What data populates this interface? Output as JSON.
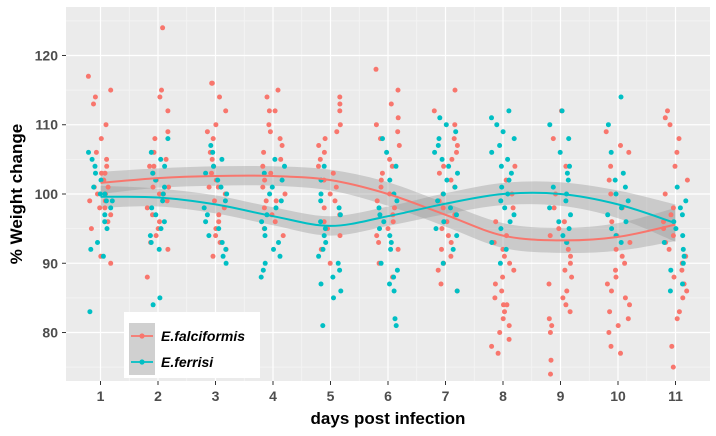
{
  "chart_data": {
    "type": "scatter",
    "title": "",
    "xlabel": "days post infection",
    "ylabel": "% Weight change",
    "xlim": [
      0.4,
      11.6
    ],
    "ylim": [
      73,
      127
    ],
    "x_ticks": [
      1,
      2,
      3,
      4,
      5,
      6,
      7,
      8,
      9,
      10,
      11
    ],
    "y_ticks": [
      80,
      90,
      100,
      110,
      120
    ],
    "grid": true,
    "legend_position": "bottom-left",
    "series": [
      {
        "name": "E.falciformis",
        "color": "#f8766d",
        "trend": [
          {
            "x": 1,
            "y": 101.6
          },
          {
            "x": 2,
            "y": 102.3
          },
          {
            "x": 3,
            "y": 102.6
          },
          {
            "x": 4,
            "y": 102.6
          },
          {
            "x": 5,
            "y": 102.0
          },
          {
            "x": 6,
            "y": 100.0
          },
          {
            "x": 7,
            "y": 97.0
          },
          {
            "x": 8,
            "y": 94.0
          },
          {
            "x": 9,
            "y": 93.3
          },
          {
            "x": 10,
            "y": 93.8
          },
          {
            "x": 11,
            "y": 95.6
          }
        ],
        "band": [
          1.6,
          1.4,
          1.4,
          1.4,
          1.5,
          1.7,
          1.7,
          1.8,
          1.8,
          2.0,
          2.4
        ],
        "points": [
          {
            "x": 1,
            "values": [
              117,
              115,
              114,
              113,
              110,
              108,
              106,
              105,
              104,
              103,
              103,
              102,
              101,
              101,
              100,
              100,
              99,
              99,
              98,
              98,
              97,
              96,
              95,
              91,
              90
            ]
          },
          {
            "x": 2,
            "values": [
              124,
              115,
              114,
              112,
              109,
              108,
              106,
              105,
              104,
              104,
              103,
              102,
              101,
              101,
              100,
              100,
              99,
              98,
              97,
              96,
              95,
              94,
              93,
              92,
              88
            ]
          },
          {
            "x": 3,
            "values": [
              116,
              116,
              114,
              112,
              110,
              109,
              108,
              106,
              105,
              104,
              103,
              102,
              101,
              101,
              100,
              99,
              98,
              97,
              96,
              95,
              94,
              93,
              92,
              91
            ]
          },
          {
            "x": 4,
            "values": [
              115,
              114,
              112,
              112,
              110,
              109,
              108,
              107,
              106,
              105,
              104,
              103,
              102,
              101,
              100,
              99,
              99,
              98,
              97,
              96,
              95,
              94
            ]
          },
          {
            "x": 5,
            "values": [
              114,
              113,
              112,
              110,
              109,
              108,
              107,
              106,
              105,
              104,
              103,
              102,
              101,
              100,
              99,
              98,
              97,
              96,
              95,
              94,
              92,
              90
            ]
          },
          {
            "x": 6,
            "values": [
              118,
              115,
              113,
              111,
              110,
              109,
              108,
              107,
              105,
              104,
              103,
              102,
              101,
              100,
              99,
              98,
              97,
              96,
              95,
              94,
              93,
              92,
              90,
              88
            ]
          },
          {
            "x": 7,
            "values": [
              115,
              112,
              110,
              108,
              107,
              106,
              105,
              104,
              103,
              102,
              101,
              100,
              99,
              98,
              97,
              96,
              95,
              94,
              93,
              92,
              91,
              90,
              89,
              87,
              86
            ]
          },
          {
            "x": 8,
            "values": [
              104,
              102,
              100,
              98,
              96,
              94,
              93,
              92,
              91,
              90,
              89,
              88,
              87,
              86,
              85,
              84,
              84,
              83,
              82,
              81,
              80,
              79,
              78,
              77
            ]
          },
          {
            "x": 9,
            "values": [
              112,
              108,
              104,
              100,
              98,
              96,
              95,
              94,
              93,
              92,
              91,
              90,
              89,
              88,
              87,
              86,
              85,
              84,
              83,
              82,
              81,
              80,
              76,
              74
            ]
          },
          {
            "x": 10,
            "values": [
              109,
              107,
              106,
              104,
              102,
              100,
              98,
              96,
              94,
              93,
              92,
              91,
              90,
              89,
              88,
              87,
              86,
              85,
              84,
              83,
              82,
              81,
              80,
              78,
              77
            ]
          },
          {
            "x": 11,
            "values": [
              112,
              111,
              110,
              108,
              106,
              104,
              102,
              100,
              98,
              97,
              96,
              95,
              94,
              93,
              92,
              91,
              90,
              89,
              88,
              87,
              86,
              85,
              83,
              82,
              78,
              75
            ]
          }
        ]
      },
      {
        "name": "E.ferrisi",
        "color": "#00bfc4",
        "trend": [
          {
            "x": 1,
            "y": 99.6
          },
          {
            "x": 2,
            "y": 99.5
          },
          {
            "x": 3,
            "y": 98.5
          },
          {
            "x": 4,
            "y": 96.8
          },
          {
            "x": 5,
            "y": 95.4
          },
          {
            "x": 6,
            "y": 96.8
          },
          {
            "x": 7,
            "y": 98.6
          },
          {
            "x": 8,
            "y": 100.0
          },
          {
            "x": 9,
            "y": 100.0
          },
          {
            "x": 10,
            "y": 98.5
          },
          {
            "x": 11,
            "y": 95.8
          }
        ],
        "band": [
          1.6,
          1.3,
          1.3,
          1.3,
          1.4,
          1.4,
          1.5,
          1.6,
          1.7,
          2.0,
          2.7
        ],
        "points": [
          {
            "x": 1,
            "values": [
              106,
              105,
              104,
              103,
              102,
              101,
              100,
              100,
              99,
              99,
              98,
              97,
              96,
              95,
              93,
              92,
              91,
              83
            ]
          },
          {
            "x": 2,
            "values": [
              108,
              106,
              105,
              104,
              103,
              102,
              101,
              100,
              99,
              98,
              97,
              96,
              95,
              94,
              93,
              92,
              85,
              84
            ]
          },
          {
            "x": 3,
            "values": [
              107,
              106,
              105,
              104,
              103,
              102,
              101,
              100,
              99,
              98,
              97,
              96,
              95,
              94,
              93,
              92,
              91,
              90
            ]
          },
          {
            "x": 4,
            "values": [
              105,
              104,
              103,
              102,
              101,
              100,
              99,
              98,
              97,
              96,
              95,
              94,
              93,
              92,
              91,
              90,
              89,
              88
            ]
          },
          {
            "x": 5,
            "values": [
              104,
              102,
              100,
              99,
              98,
              97,
              96,
              95,
              94,
              93,
              92,
              91,
              90,
              89,
              88,
              87,
              86,
              85,
              81
            ]
          },
          {
            "x": 6,
            "values": [
              108,
              106,
              104,
              102,
              100,
              99,
              98,
              97,
              96,
              95,
              94,
              93,
              92,
              90,
              89,
              88,
              87,
              86,
              82,
              81
            ]
          },
          {
            "x": 7,
            "values": [
              111,
              110,
              109,
              108,
              107,
              106,
              105,
              104,
              103,
              102,
              101,
              100,
              99,
              98,
              97,
              96,
              95,
              94,
              92,
              90,
              86
            ]
          },
          {
            "x": 8,
            "values": [
              112,
              111,
              110,
              109,
              108,
              107,
              106,
              105,
              104,
              103,
              102,
              101,
              100,
              99,
              98,
              97,
              96,
              95,
              93,
              92,
              90
            ]
          },
          {
            "x": 9,
            "values": [
              112,
              110,
              108,
              106,
              104,
              103,
              102,
              101,
              100,
              99,
              98,
              97,
              96,
              95,
              94,
              93
            ]
          },
          {
            "x": 10,
            "values": [
              114,
              110,
              106,
              103,
              102,
              101,
              100,
              99,
              98,
              97,
              96,
              95,
              94,
              93
            ]
          },
          {
            "x": 11,
            "values": [
              101,
              99,
              98,
              97,
              96,
              95,
              94,
              93,
              92,
              91,
              90,
              89,
              87,
              86
            ]
          }
        ]
      }
    ]
  }
}
